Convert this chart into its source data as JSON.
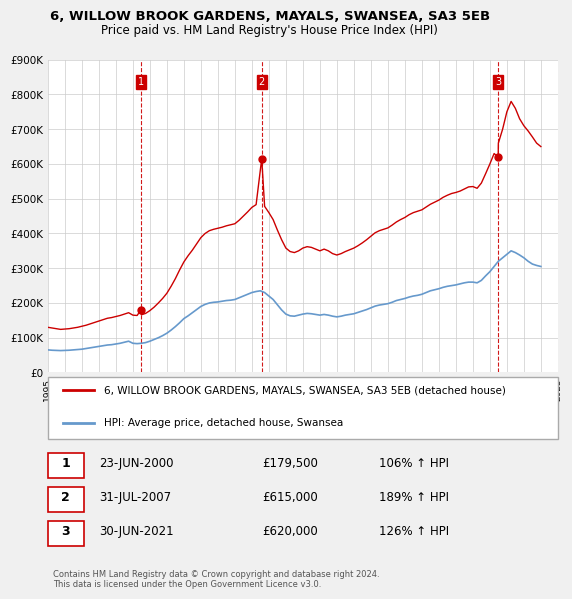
{
  "title": "6, WILLOW BROOK GARDENS, MAYALS, SWANSEA, SA3 5EB",
  "subtitle": "Price paid vs. HM Land Registry's House Price Index (HPI)",
  "ylabel": "",
  "ylim": [
    0,
    900000
  ],
  "yticks": [
    0,
    100000,
    200000,
    300000,
    400000,
    500000,
    600000,
    700000,
    800000,
    900000
  ],
  "ytick_labels": [
    "£0",
    "£100K",
    "£200K",
    "£300K",
    "£400K",
    "£500K",
    "£600K",
    "£700K",
    "£800K",
    "£900K"
  ],
  "background_color": "#f0f0f0",
  "plot_bg_color": "#ffffff",
  "grid_color": "#cccccc",
  "sale_color": "#cc0000",
  "hpi_color": "#6699cc",
  "sale_marker_color": "#cc0000",
  "vline_color": "#cc0000",
  "legend_label_sale": "6, WILLOW BROOK GARDENS, MAYALS, SWANSEA, SA3 5EB (detached house)",
  "legend_label_hpi": "HPI: Average price, detached house, Swansea",
  "transactions": [
    {
      "num": 1,
      "date": "23-JUN-2000",
      "price": 179500,
      "pct": "106%",
      "year": 2000.47
    },
    {
      "num": 2,
      "date": "31-JUL-2007",
      "price": 615000,
      "pct": "189%",
      "year": 2007.58
    },
    {
      "num": 3,
      "date": "30-JUN-2021",
      "price": 620000,
      "pct": "126%",
      "year": 2021.49
    }
  ],
  "footnote": "Contains HM Land Registry data © Crown copyright and database right 2024.\nThis data is licensed under the Open Government Licence v3.0.",
  "hpi_data_x": [
    1995.0,
    1995.25,
    1995.5,
    1995.75,
    1996.0,
    1996.25,
    1996.5,
    1996.75,
    1997.0,
    1997.25,
    1997.5,
    1997.75,
    1998.0,
    1998.25,
    1998.5,
    1998.75,
    1999.0,
    1999.25,
    1999.5,
    1999.75,
    2000.0,
    2000.25,
    2000.5,
    2000.75,
    2001.0,
    2001.25,
    2001.5,
    2001.75,
    2002.0,
    2002.25,
    2002.5,
    2002.75,
    2003.0,
    2003.25,
    2003.5,
    2003.75,
    2004.0,
    2004.25,
    2004.5,
    2004.75,
    2005.0,
    2005.25,
    2005.5,
    2005.75,
    2006.0,
    2006.25,
    2006.5,
    2006.75,
    2007.0,
    2007.25,
    2007.5,
    2007.75,
    2008.0,
    2008.25,
    2008.5,
    2008.75,
    2009.0,
    2009.25,
    2009.5,
    2009.75,
    2010.0,
    2010.25,
    2010.5,
    2010.75,
    2011.0,
    2011.25,
    2011.5,
    2011.75,
    2012.0,
    2012.25,
    2012.5,
    2012.75,
    2013.0,
    2013.25,
    2013.5,
    2013.75,
    2014.0,
    2014.25,
    2014.5,
    2014.75,
    2015.0,
    2015.25,
    2015.5,
    2015.75,
    2016.0,
    2016.25,
    2016.5,
    2016.75,
    2017.0,
    2017.25,
    2017.5,
    2017.75,
    2018.0,
    2018.25,
    2018.5,
    2018.75,
    2019.0,
    2019.25,
    2019.5,
    2019.75,
    2020.0,
    2020.25,
    2020.5,
    2020.75,
    2021.0,
    2021.25,
    2021.5,
    2021.75,
    2022.0,
    2022.25,
    2022.5,
    2022.75,
    2023.0,
    2023.25,
    2023.5,
    2023.75,
    2024.0
  ],
  "hpi_data_y": [
    65000,
    64000,
    63500,
    63000,
    63500,
    64000,
    65000,
    66000,
    67000,
    69000,
    71000,
    73000,
    75000,
    77000,
    79000,
    80000,
    82000,
    84000,
    87000,
    90000,
    84000,
    83000,
    84000,
    86000,
    90000,
    95000,
    100000,
    106000,
    113000,
    122000,
    132000,
    143000,
    155000,
    163000,
    172000,
    181000,
    190000,
    196000,
    200000,
    202000,
    203000,
    205000,
    207000,
    208000,
    210000,
    215000,
    220000,
    225000,
    230000,
    233000,
    235000,
    230000,
    220000,
    210000,
    195000,
    180000,
    168000,
    163000,
    162000,
    165000,
    168000,
    170000,
    169000,
    167000,
    165000,
    167000,
    165000,
    162000,
    160000,
    162000,
    165000,
    167000,
    169000,
    173000,
    177000,
    181000,
    186000,
    191000,
    194000,
    196000,
    198000,
    202000,
    207000,
    210000,
    213000,
    217000,
    220000,
    222000,
    225000,
    230000,
    235000,
    238000,
    241000,
    245000,
    248000,
    250000,
    252000,
    255000,
    258000,
    260000,
    260000,
    258000,
    265000,
    278000,
    290000,
    305000,
    320000,
    330000,
    340000,
    350000,
    345000,
    338000,
    330000,
    320000,
    312000,
    308000,
    305000
  ],
  "sale_data_x": [
    1995.0,
    1995.25,
    1995.5,
    1995.75,
    1996.0,
    1996.25,
    1996.5,
    1996.75,
    1997.0,
    1997.25,
    1997.5,
    1997.75,
    1998.0,
    1998.25,
    1998.5,
    1998.75,
    1999.0,
    1999.25,
    1999.5,
    1999.75,
    2000.0,
    2000.25,
    2000.47,
    2000.5,
    2000.75,
    2001.0,
    2001.25,
    2001.5,
    2001.75,
    2002.0,
    2002.25,
    2002.5,
    2002.75,
    2003.0,
    2003.25,
    2003.5,
    2003.75,
    2004.0,
    2004.25,
    2004.5,
    2004.75,
    2005.0,
    2005.25,
    2005.5,
    2005.75,
    2006.0,
    2006.25,
    2006.5,
    2006.75,
    2007.0,
    2007.25,
    2007.58,
    2007.75,
    2008.0,
    2008.25,
    2008.5,
    2008.75,
    2009.0,
    2009.25,
    2009.5,
    2009.75,
    2010.0,
    2010.25,
    2010.5,
    2010.75,
    2011.0,
    2011.25,
    2011.5,
    2011.75,
    2012.0,
    2012.25,
    2012.5,
    2012.75,
    2013.0,
    2013.25,
    2013.5,
    2013.75,
    2014.0,
    2014.25,
    2014.5,
    2014.75,
    2015.0,
    2015.25,
    2015.5,
    2015.75,
    2016.0,
    2016.25,
    2016.5,
    2016.75,
    2017.0,
    2017.25,
    2017.5,
    2017.75,
    2018.0,
    2018.25,
    2018.5,
    2018.75,
    2019.0,
    2019.25,
    2019.5,
    2019.75,
    2020.0,
    2020.25,
    2020.5,
    2020.75,
    2021.0,
    2021.25,
    2021.49,
    2021.5,
    2021.75,
    2022.0,
    2022.25,
    2022.5,
    2022.75,
    2023.0,
    2023.25,
    2023.5,
    2023.75,
    2024.0
  ],
  "sale_data_y": [
    130000,
    128000,
    126000,
    124000,
    125000,
    126000,
    128000,
    130000,
    133000,
    136000,
    140000,
    144000,
    148000,
    152000,
    156000,
    158000,
    161000,
    164000,
    168000,
    172000,
    165000,
    164000,
    179500,
    166000,
    170000,
    178000,
    188000,
    200000,
    213000,
    228000,
    248000,
    270000,
    295000,
    318000,
    336000,
    352000,
    370000,
    388000,
    400000,
    408000,
    412000,
    415000,
    418000,
    422000,
    425000,
    428000,
    438000,
    450000,
    462000,
    475000,
    483000,
    615000,
    478000,
    460000,
    440000,
    410000,
    382000,
    358000,
    348000,
    345000,
    350000,
    358000,
    362000,
    360000,
    355000,
    350000,
    355000,
    350000,
    342000,
    338000,
    342000,
    348000,
    353000,
    358000,
    365000,
    373000,
    382000,
    392000,
    402000,
    408000,
    412000,
    416000,
    424000,
    433000,
    440000,
    446000,
    454000,
    460000,
    464000,
    468000,
    476000,
    484000,
    490000,
    496000,
    504000,
    510000,
    515000,
    518000,
    522000,
    528000,
    534000,
    535000,
    530000,
    545000,
    572000,
    600000,
    630000,
    620000,
    660000,
    700000,
    750000,
    780000,
    760000,
    730000,
    710000,
    695000,
    678000,
    660000,
    650000
  ]
}
